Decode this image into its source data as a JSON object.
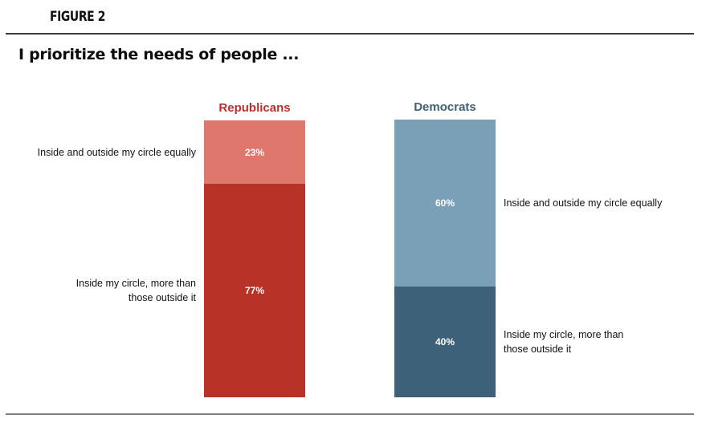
{
  "figure_label": "FIGURE 2",
  "chart_data": {
    "type": "bar",
    "stacked": true,
    "title": "I prioritize the needs of people ...",
    "xlabel": "",
    "ylabel": "",
    "ylim": [
      0,
      100
    ],
    "grid": false,
    "categories": [
      "Republicans",
      "Democrats"
    ],
    "series": [
      {
        "name": "Inside my circle, more than those outside it",
        "values": [
          77,
          40
        ],
        "labels": [
          "77%",
          "40%"
        ]
      },
      {
        "name": "Inside and outside my circle equally",
        "values": [
          23,
          60
        ],
        "labels": [
          "23%",
          "60%"
        ]
      }
    ],
    "colors": {
      "Republicans": {
        "label": "#b83227",
        "Inside my circle, more than those outside it": "#b83227",
        "Inside and outside my circle equally": "#df776c"
      },
      "Democrats": {
        "label": "#3d6178",
        "Inside my circle, more than those outside it": "#3d6178",
        "Inside and outside my circle equally": "#7aa0b8"
      }
    },
    "category_labels": {
      "Republicans": {
        "Inside and outside my circle equally": [
          "Inside and outside my circle equally"
        ],
        "Inside my circle, more than those outside it": [
          "Inside my circle, more than",
          "those outside it"
        ]
      },
      "Democrats": {
        "Inside and outside my circle equally": [
          "Inside and outside my circle equally"
        ],
        "Inside my circle, more than those outside it": [
          "Inside my circle, more than",
          "those outside it"
        ]
      }
    }
  }
}
